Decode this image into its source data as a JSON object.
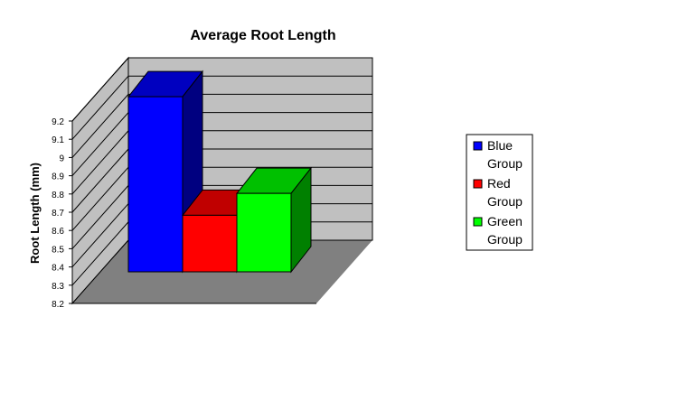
{
  "chart_data": {
    "type": "bar",
    "title": "Average Root Length",
    "xlabel": "",
    "ylabel": "Root Length (mm)",
    "ylim": [
      8.2,
      9.2
    ],
    "yticks": [
      "8.2",
      "8.3",
      "8.4",
      "8.5",
      "8.6",
      "8.7",
      "8.8",
      "8.9",
      "9",
      "9.1",
      "9.2"
    ],
    "categories": [
      "Blue Group",
      "Red Group",
      "Green Group"
    ],
    "values": [
      9.16,
      8.51,
      8.63
    ],
    "colors": {
      "front": [
        "#0000ff",
        "#ff0000",
        "#00ff00"
      ],
      "top": [
        "#0000c0",
        "#c00000",
        "#00c000"
      ],
      "side": [
        "#000080",
        "#800000",
        "#008000"
      ]
    },
    "legend": {
      "position": "right",
      "entries": [
        {
          "lines": [
            "Blue",
            "Group"
          ],
          "color": "#0000ff"
        },
        {
          "lines": [
            "Red",
            "Group"
          ],
          "color": "#ff0000"
        },
        {
          "lines": [
            "Green",
            "Group"
          ],
          "color": "#00ff00"
        }
      ]
    },
    "grid": true,
    "wall_color": "#c0c0c0",
    "floor_color": "#808080"
  }
}
